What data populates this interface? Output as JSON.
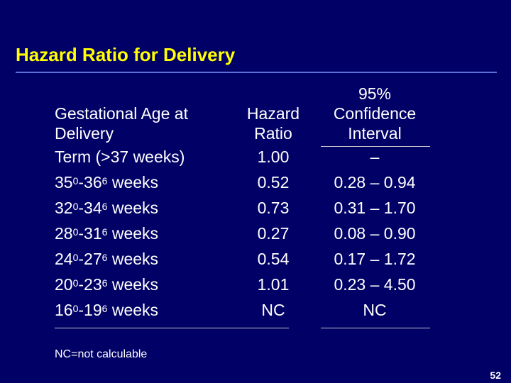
{
  "slide": {
    "title": "Hazard Ratio for Delivery",
    "footnote": "NC=not calculable",
    "page_number": "52"
  },
  "table": {
    "headers": {
      "col1": [
        "Gestational Age at",
        "Delivery"
      ],
      "col2": [
        "Hazard",
        "Ratio"
      ],
      "col3": [
        "95%",
        "Confidence",
        "Interval"
      ]
    },
    "rows": [
      {
        "age": {
          "plain": "Term (>37 weeks)"
        },
        "hr": "1.00",
        "ci": "–"
      },
      {
        "age": {
          "a": "35",
          "a_sup": "0",
          "b": "-36",
          "b_sup": "6",
          "suffix": " weeks"
        },
        "hr": "0.52",
        "ci": "0.28 – 0.94"
      },
      {
        "age": {
          "a": "32",
          "a_sup": "0",
          "b": "-34",
          "b_sup": "6",
          "suffix": " weeks"
        },
        "hr": "0.73",
        "ci": "0.31 – 1.70"
      },
      {
        "age": {
          "a": "28",
          "a_sup": "0",
          "b": "-31",
          "b_sup": "6",
          "suffix": " weeks"
        },
        "hr": "0.27",
        "ci": "0.08 – 0.90"
      },
      {
        "age": {
          "a": "24",
          "a_sup": "0",
          "b": "-27",
          "b_sup": "6",
          "suffix": " weeks"
        },
        "hr": "0.54",
        "ci": "0.17 – 1.72"
      },
      {
        "age": {
          "a": "20",
          "a_sup": "0",
          "b": "-23",
          "b_sup": "6",
          "suffix": " weeks"
        },
        "hr": "1.01",
        "ci": "0.23 – 4.50"
      },
      {
        "age": {
          "a": "16",
          "a_sup": "0",
          "b": "-19",
          "b_sup": "6",
          "suffix": " weeks"
        },
        "hr": "NC",
        "ci": "NC"
      }
    ]
  },
  "colors": {
    "background": "#000066",
    "title": "#ffff00",
    "text": "#ffffff",
    "title_rule": "#5b6fd6"
  }
}
